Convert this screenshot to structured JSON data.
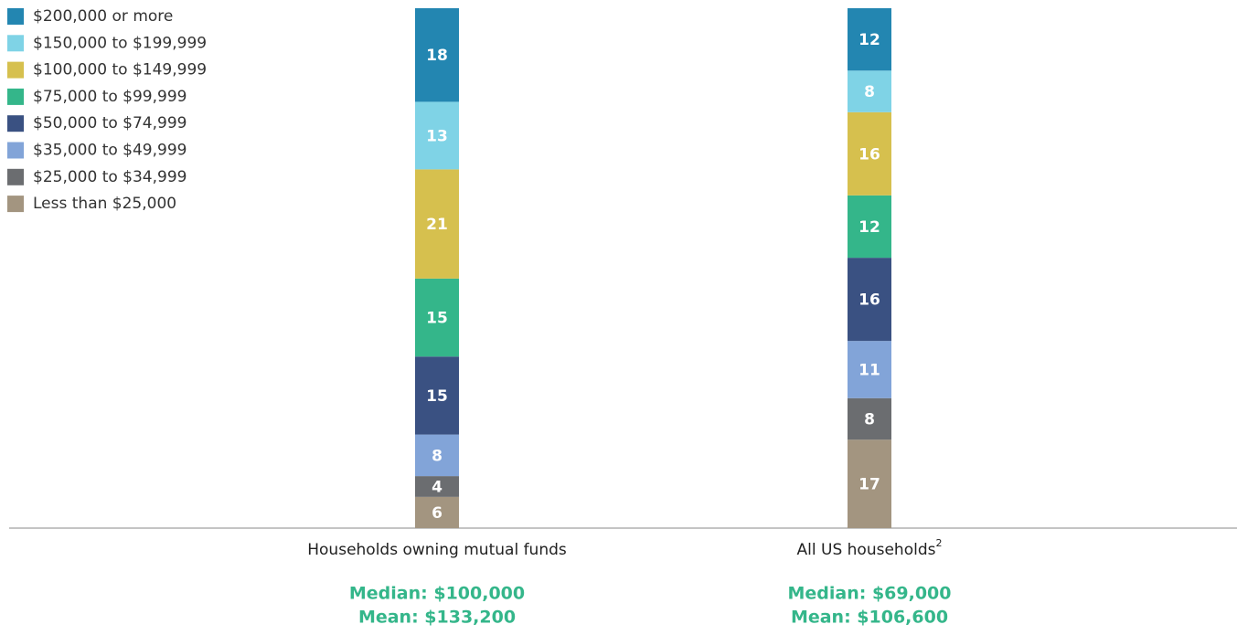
{
  "chart_data": {
    "type": "stacked_bar",
    "categories": [
      "Households owning mutual funds",
      "All US households"
    ],
    "category_footnotes": [
      null,
      "2"
    ],
    "annotations": [
      [
        "Median: $100,000",
        "Mean: $133,200"
      ],
      [
        "Median: $69,000",
        "Mean: $106,600"
      ]
    ],
    "ylim": [
      0,
      100
    ],
    "series": [
      {
        "name": "$200,000 or more",
        "color": "#2386b1",
        "values": [
          18,
          12
        ]
      },
      {
        "name": "$150,000 to $199,999",
        "color": "#7fd3e6",
        "values": [
          13,
          8
        ]
      },
      {
        "name": "$100,000 to $149,999",
        "color": "#d6c04e",
        "values": [
          21,
          16
        ]
      },
      {
        "name": "$75,000 to $99,999",
        "color": "#34b68a",
        "values": [
          15,
          12
        ]
      },
      {
        "name": "$50,000 to $74,999",
        "color": "#3a5182",
        "values": [
          15,
          16
        ]
      },
      {
        "name": "$35,000 to $49,999",
        "color": "#82a4d8",
        "values": [
          8,
          11
        ]
      },
      {
        "name": "$25,000 to $34,999",
        "color": "#6b6d70",
        "values": [
          4,
          8
        ]
      },
      {
        "name": "Less than $25,000",
        "color": "#a39580",
        "values": [
          6,
          17
        ]
      }
    ]
  }
}
